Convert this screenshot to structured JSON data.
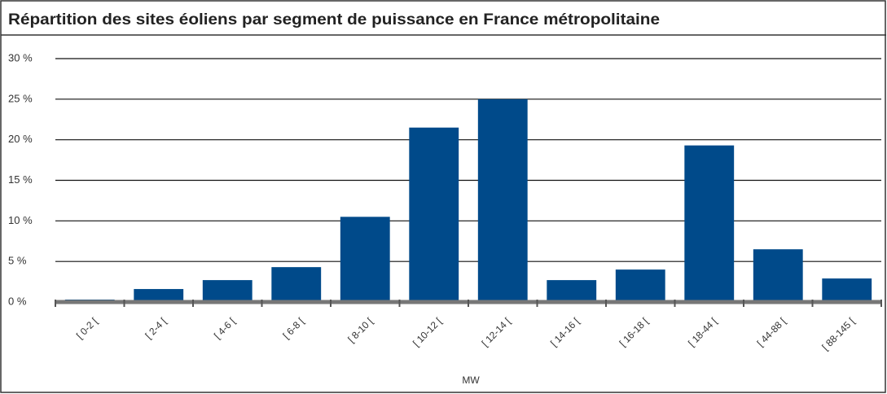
{
  "chart_data": {
    "type": "bar",
    "title": "Répartition des sites éoliens par segment de puissance en France métropolitaine",
    "xlabel": "MW",
    "categories": [
      "[ 0-2 [",
      "[ 2-4 [",
      "[ 4-6 [",
      "[ 6-8 [",
      "[ 8-10 [",
      "[ 10-12 [",
      "[ 12-14 [",
      "[ 14-16 [",
      "[ 16-18 [",
      "[ 18-44 [",
      "[ 44-88 [",
      "[ 88-145 ["
    ],
    "values": [
      0.3,
      1.6,
      2.7,
      4.3,
      10.5,
      21.5,
      25,
      2.7,
      4.0,
      19.3,
      6.5,
      2.9
    ],
    "color": "#004a8a",
    "ylim": [
      0,
      30
    ],
    "yticks": [
      {
        "value": 0,
        "label": "0 %"
      },
      {
        "value": 5,
        "label": "5 %"
      },
      {
        "value": 10,
        "label": "10 %"
      },
      {
        "value": 15,
        "label": "15 %"
      },
      {
        "value": 20,
        "label": "20 %"
      },
      {
        "value": 25,
        "label": "25 %"
      },
      {
        "value": 30,
        "label": "30 %"
      }
    ],
    "grid": true
  }
}
